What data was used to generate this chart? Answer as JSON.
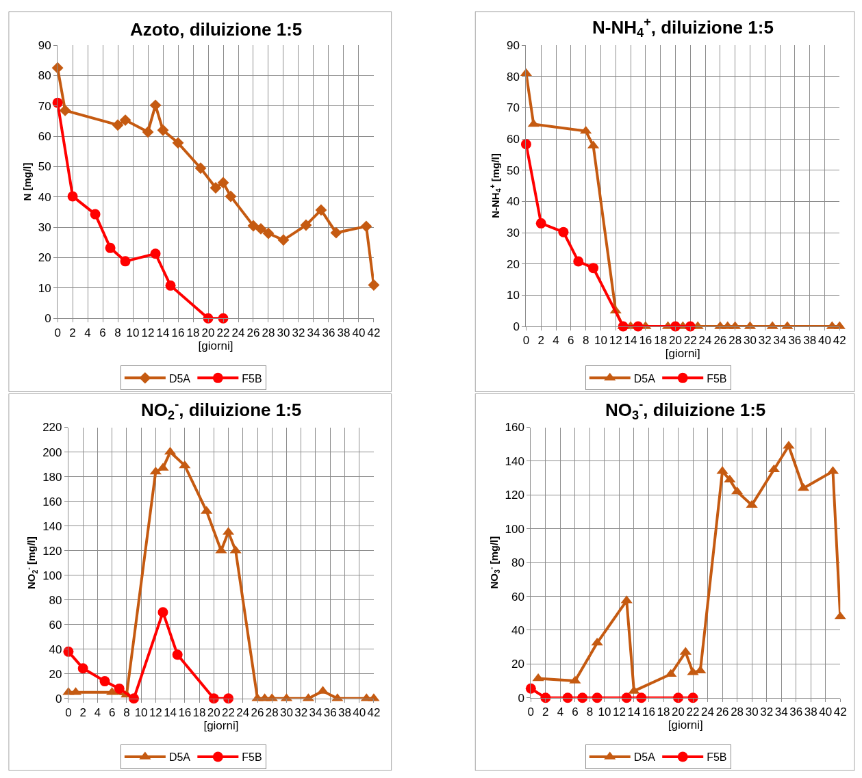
{
  "chart_data": [
    {
      "type": "line",
      "title": "Azoto, diluizione 1:5",
      "xlabel": "[giorni]",
      "ylabel": "N [mg/l]",
      "xlim": [
        0,
        42
      ],
      "xticks": [
        0,
        2,
        4,
        6,
        8,
        10,
        12,
        14,
        16,
        18,
        20,
        22,
        24,
        26,
        28,
        30,
        32,
        34,
        36,
        38,
        40,
        42
      ],
      "ylim": [
        0,
        90
      ],
      "yticks": [
        0,
        10,
        20,
        30,
        40,
        50,
        60,
        70,
        80,
        90
      ],
      "grid": true,
      "legend": "bottom",
      "line_style": "solid",
      "series": [
        {
          "name": "D5A",
          "color": "#c55a11",
          "marker": "diamond",
          "x": [
            0,
            1,
            8,
            9,
            12,
            13,
            14,
            16,
            19,
            21,
            22,
            23,
            26,
            27,
            28,
            30,
            33,
            35,
            37,
            41,
            42
          ],
          "values": [
            82.5,
            68.5,
            63.7,
            65.3,
            61.4,
            70.2,
            62,
            57.8,
            49.5,
            43,
            44.7,
            40.2,
            30.5,
            29.5,
            28,
            25.8,
            30.7,
            35.7,
            28.2,
            30.3,
            11
          ]
        },
        {
          "name": "F5B",
          "color": "#ff0000",
          "marker": "circle",
          "x": [
            0,
            2,
            5,
            7,
            9,
            13,
            15,
            20,
            22
          ],
          "values": [
            71,
            40.2,
            34.3,
            23.2,
            18.8,
            21.3,
            10.8,
            0,
            0
          ]
        }
      ]
    },
    {
      "type": "line",
      "title": "N-NH$_{4}$$^{+}$, diluizione 1:5",
      "xlabel": "[giorni]",
      "ylabel": "N-NH$_{4}$$^{+}$ [mg/l]",
      "xlim": [
        0,
        42
      ],
      "xticks": [
        0,
        2,
        4,
        6,
        8,
        10,
        12,
        14,
        16,
        18,
        20,
        22,
        24,
        26,
        28,
        30,
        32,
        34,
        36,
        38,
        40,
        42
      ],
      "ylim": [
        0,
        90
      ],
      "yticks": [
        0,
        10,
        20,
        30,
        40,
        50,
        60,
        70,
        80,
        90
      ],
      "grid": true,
      "legend": "bottom",
      "line_style": "solid",
      "series": [
        {
          "name": "D5A",
          "color": "#c55a11",
          "marker": "triangle",
          "x": [
            0,
            1,
            8,
            9,
            12,
            13,
            14,
            16,
            19,
            21,
            22,
            23,
            26,
            27,
            28,
            30,
            33,
            35,
            41,
            42
          ],
          "values": [
            81,
            64.7,
            62.5,
            57.8,
            5,
            0,
            0,
            0,
            0,
            0,
            0,
            0,
            0,
            0,
            0,
            0,
            0,
            0,
            0,
            0
          ]
        },
        {
          "name": "F5B",
          "color": "#ff0000",
          "marker": "circle",
          "x": [
            0,
            2,
            5,
            7,
            9,
            13,
            15,
            20,
            22
          ],
          "values": [
            58.3,
            33,
            30.2,
            20.8,
            18.7,
            0,
            0,
            0,
            0
          ]
        }
      ]
    },
    {
      "type": "line",
      "title": "NO$_{2}$$^{-}$, diluizione 1:5",
      "xlabel": "[giorni]",
      "ylabel": "NO$_{2}$$^{-}$ [mg/l]",
      "xlim": [
        0,
        42
      ],
      "xticks": [
        0,
        2,
        4,
        6,
        8,
        10,
        12,
        14,
        16,
        18,
        20,
        22,
        24,
        26,
        28,
        30,
        32,
        34,
        36,
        38,
        40,
        42
      ],
      "ylim": [
        0,
        220
      ],
      "yticks": [
        0,
        20,
        40,
        60,
        80,
        100,
        120,
        140,
        160,
        180,
        200,
        220
      ],
      "grid": true,
      "legend": "bottom",
      "line_style": "solid",
      "series": [
        {
          "name": "D5A",
          "color": "#c55a11",
          "marker": "triangle",
          "x": [
            0,
            1,
            6,
            8,
            12,
            13,
            14,
            16,
            19,
            21,
            22,
            23,
            26,
            27,
            28,
            30,
            33,
            35,
            37,
            41,
            42
          ],
          "values": [
            5,
            5,
            5,
            3,
            184,
            187,
            200,
            189,
            152,
            120,
            135,
            120,
            0,
            0,
            0,
            0,
            0,
            6,
            0,
            0,
            0
          ]
        },
        {
          "name": "F5B",
          "color": "#ff0000",
          "marker": "circle",
          "x": [
            0,
            2,
            5,
            7,
            9,
            13,
            15,
            20,
            22
          ],
          "values": [
            38,
            24.5,
            14,
            8,
            0,
            70,
            35.5,
            0,
            0
          ]
        }
      ]
    },
    {
      "type": "line",
      "title": "NO$_{3}$$^{-}$, diluizione 1:5",
      "xlabel": "[giorni]",
      "ylabel": "NO$_{3}$$^{-}$ [mg/l]",
      "xlim": [
        0,
        42
      ],
      "xticks": [
        0,
        2,
        4,
        6,
        8,
        10,
        12,
        14,
        16,
        18,
        20,
        22,
        24,
        26,
        28,
        30,
        32,
        34,
        36,
        38,
        40,
        42
      ],
      "ylim": [
        0,
        160
      ],
      "yticks": [
        0,
        20,
        40,
        60,
        80,
        100,
        120,
        140,
        160
      ],
      "grid": true,
      "legend": "bottom",
      "line_style": "solid",
      "series": [
        {
          "name": "D5A",
          "color": "#c55a11",
          "marker": "triangle",
          "x": [
            1,
            6,
            9,
            13,
            14,
            19,
            21,
            22,
            23,
            26,
            27,
            28,
            30,
            33,
            35,
            37,
            41,
            42
          ],
          "values": [
            11.5,
            10,
            32.5,
            57.5,
            4,
            14,
            27,
            15,
            16,
            134,
            129,
            122,
            114,
            135,
            149,
            124,
            134,
            48
          ]
        },
        {
          "name": "F5B",
          "color": "#ff0000",
          "marker": "circle",
          "x": [
            0,
            2,
            5,
            7,
            9,
            13,
            15,
            20,
            22
          ],
          "values": [
            5.5,
            0,
            0,
            0,
            0,
            0,
            0,
            0,
            0
          ]
        }
      ]
    }
  ]
}
